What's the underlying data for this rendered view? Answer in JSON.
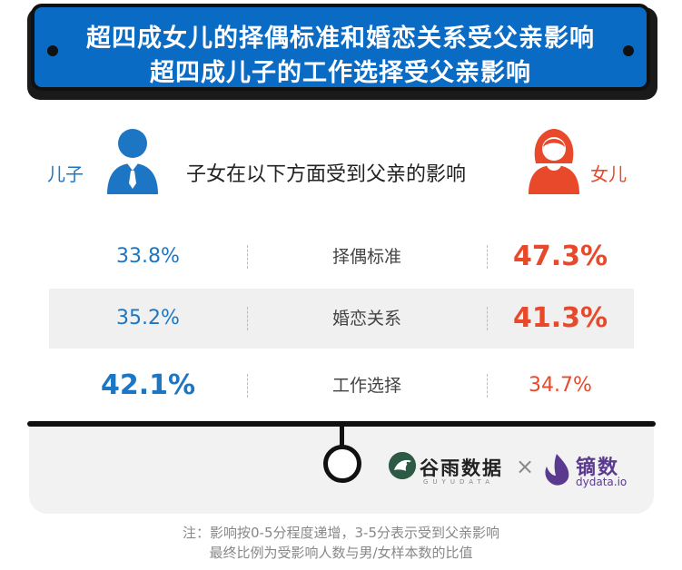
{
  "title": {
    "line1": "超四成女儿的择偶标准和婚恋关系受父亲影响",
    "line2": "超四成儿子的工作选择受父亲影响"
  },
  "header": {
    "son_label": "儿子",
    "daughter_label": "女儿",
    "subtitle": "子女在以下方面受到父亲的影响"
  },
  "chart_data": {
    "type": "table",
    "columns": [
      "儿子",
      "",
      "女儿"
    ],
    "rows": [
      {
        "category": "择偶标准",
        "son": "33.8%",
        "daughter": "47.3%",
        "son_value": 33.8,
        "daughter_value": 47.3
      },
      {
        "category": "婚恋关系",
        "son": "35.2%",
        "daughter": "41.3%",
        "son_value": 35.2,
        "daughter_value": 41.3
      },
      {
        "category": "工作选择",
        "son": "42.1%",
        "daughter": "34.7%",
        "son_value": 42.1,
        "daughter_value": 34.7
      }
    ],
    "colors": {
      "son": "#1d76c3",
      "daughter": "#e8492a"
    }
  },
  "logos": {
    "guyu": "谷雨数据",
    "guyu_sub": "GUYUDATA",
    "times": "×",
    "dy": "镝数",
    "dy_url": "dydata.io"
  },
  "notes": {
    "line1": "注：影响按0-5分程度递增，3-5分表示受到父亲影响",
    "line2": "最终比例为受影响人数与男/女样本数的比值"
  }
}
